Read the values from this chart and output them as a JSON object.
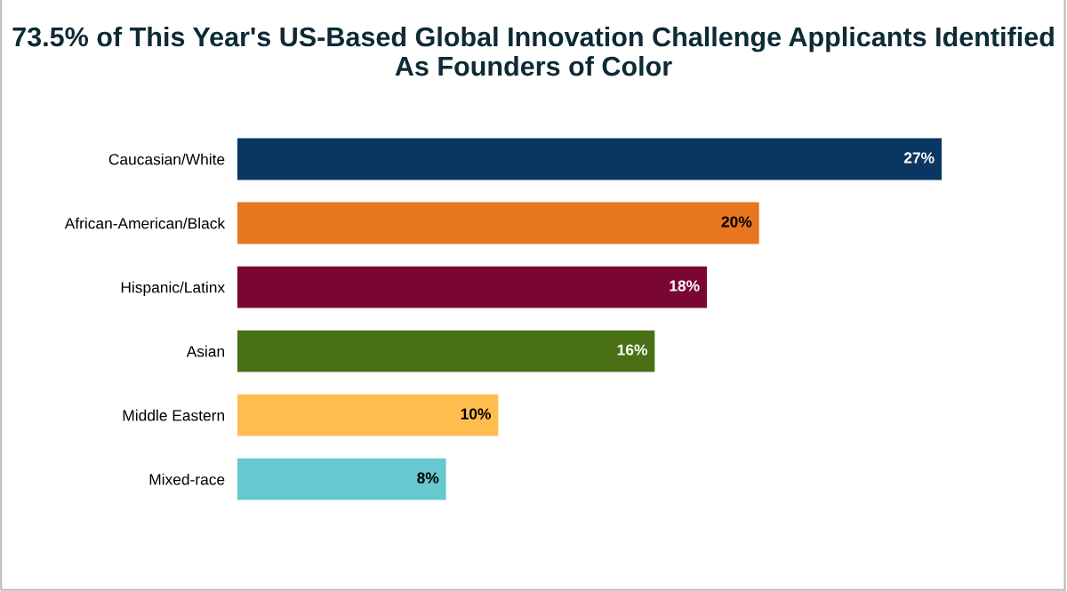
{
  "chart_data": {
    "type": "bar",
    "orientation": "horizontal",
    "title": "73.5% of This Year's US-Based Global Innovation Challenge Applicants Identified As Founders of Color",
    "categories": [
      "Caucasian/White",
      "African-American/Black",
      "Hispanic/Latinx",
      "Asian",
      "Middle Eastern",
      "Mixed-race"
    ],
    "values": [
      27,
      20,
      18,
      16,
      10,
      8
    ],
    "value_labels": [
      "27%",
      "20%",
      "18%",
      "16%",
      "10%",
      "8%"
    ],
    "colors": [
      "#0a3761",
      "#e8751f",
      "#7a0733",
      "#4a7015",
      "#ffbd4f",
      "#67c8d0"
    ],
    "grid": false,
    "legend": false
  }
}
